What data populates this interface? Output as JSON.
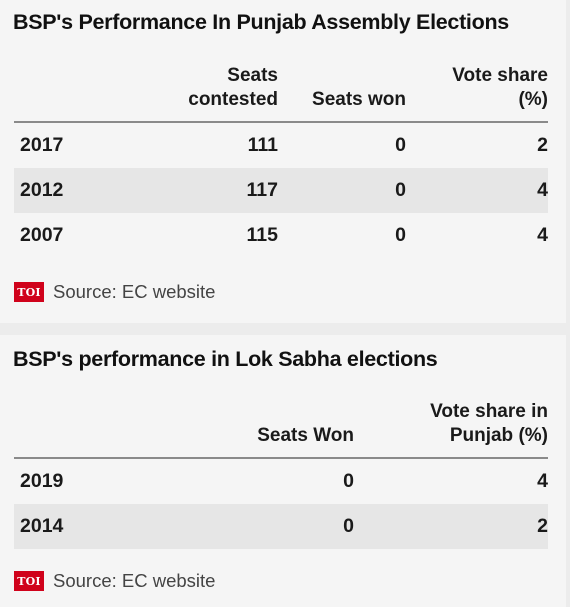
{
  "assembly": {
    "title": "BSP's Performance In Punjab Assembly Elections",
    "headers": {
      "contested_line1": "Seats",
      "contested_line2": "contested",
      "won": "Seats won",
      "share_line1": "Vote share",
      "share_line2": "(%)"
    },
    "rows": [
      {
        "year": "2017",
        "contested": "111",
        "won": "0",
        "share": "2"
      },
      {
        "year": "2012",
        "contested": "117",
        "won": "0",
        "share": "4"
      },
      {
        "year": "2007",
        "contested": "115",
        "won": "0",
        "share": "4"
      }
    ],
    "logo": "TOI",
    "source": "Source: EC website"
  },
  "loksabha": {
    "title": "BSP's performance in Lok Sabha elections",
    "headers": {
      "won": "Seats Won",
      "share_line1": "Vote share in",
      "share_line2": "Punjab (%)"
    },
    "rows": [
      {
        "year": "2019",
        "won": "0",
        "share": "4"
      },
      {
        "year": "2014",
        "won": "0",
        "share": "2"
      }
    ],
    "logo": "TOI",
    "source": "Source: EC website"
  },
  "chart_data": [
    {
      "type": "table",
      "title": "BSP's Performance In Punjab Assembly Elections",
      "columns": [
        "",
        "Seats contested",
        "Seats won",
        "Vote share (%)"
      ],
      "rows": [
        [
          "2017",
          111,
          0,
          2
        ],
        [
          "2012",
          117,
          0,
          4
        ],
        [
          "2007",
          115,
          0,
          4
        ]
      ],
      "source": "Source: EC website"
    },
    {
      "type": "table",
      "title": "BSP's performance in Lok Sabha elections",
      "columns": [
        "",
        "Seats Won",
        "Vote share in Punjab (%)"
      ],
      "rows": [
        [
          "2019",
          0,
          4
        ],
        [
          "2014",
          0,
          2
        ]
      ],
      "source": "Source: EC website"
    }
  ]
}
